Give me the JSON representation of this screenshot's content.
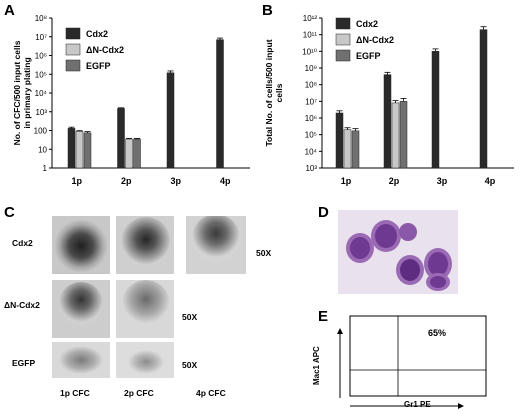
{
  "panels": {
    "A": {
      "letter": "A",
      "ylabel_lines": [
        "No. of CFC/500  input cells",
        "in primary plating"
      ],
      "y_ticks": [
        "1",
        "10",
        "100",
        "10³",
        "10⁴",
        "10⁵",
        "10⁶",
        "10⁷",
        "10⁸"
      ],
      "legend": [
        "Cdx2",
        "ΔN-Cdx2",
        "EGFP"
      ],
      "chart_data": {
        "type": "bar",
        "scale": "log",
        "ylim": [
          1,
          100000000
        ],
        "categories": [
          "1p",
          "2p",
          "3p",
          "4p"
        ],
        "series": [
          {
            "name": "Cdx2",
            "color": "#2a2a2a",
            "values": [
              130,
              1500,
              120000,
              7000000
            ],
            "errors": [
              20,
              120,
              30000,
              1500000
            ]
          },
          {
            "name": "ΔN-Cdx2",
            "color": "#c8c8c8",
            "values": [
              90,
              35,
              null,
              null
            ],
            "errors": [
              8,
              3,
              null,
              null
            ]
          },
          {
            "name": "EGFP",
            "color": "#707070",
            "values": [
              75,
              35,
              null,
              null
            ],
            "errors": [
              12,
              3,
              null,
              null
            ]
          }
        ]
      }
    },
    "B": {
      "letter": "B",
      "ylabel_lines": [
        "Total No. of cells/500  input",
        "cells"
      ],
      "y_ticks": [
        "10³",
        "10⁴",
        "10⁵",
        "10⁶",
        "10⁷",
        "10⁸",
        "10⁹",
        "10¹⁰",
        "10¹¹",
        "10¹²"
      ],
      "legend": [
        "Cdx2",
        "ΔN-Cdx2",
        "EGFP"
      ],
      "chart_data": {
        "type": "bar",
        "scale": "log",
        "ylim": [
          1000,
          1000000000000
        ],
        "categories": [
          "1p",
          "2p",
          "3p",
          "4p"
        ],
        "series": [
          {
            "name": "Cdx2",
            "color": "#2a2a2a",
            "values": [
              2000000,
              400000000,
              10000000000,
              200000000000
            ],
            "errors": [
              700000,
              150000000,
              4000000000,
              100000000000
            ]
          },
          {
            "name": "ΔN-Cdx2",
            "color": "#c8c8c8",
            "values": [
              200000,
              8000000,
              null,
              null
            ],
            "errors": [
              60000,
              3000000,
              null,
              null
            ]
          },
          {
            "name": "EGFP",
            "color": "#707070",
            "values": [
              170000,
              10000000,
              null,
              null
            ],
            "errors": [
              60000,
              5000000,
              null,
              null
            ]
          }
        ]
      }
    },
    "C": {
      "letter": "C",
      "row_labels": [
        "Cdx2",
        "ΔN-Cdx2",
        "EGFP"
      ],
      "col_labels": [
        "1p CFC",
        "2p CFC",
        "4p CFC"
      ],
      "magnification": "50X"
    },
    "D": {
      "letter": "D"
    },
    "E": {
      "letter": "E",
      "percent": "65%",
      "xlabel": "Gr1 PE",
      "ylabel": "Mac1 APC"
    }
  },
  "colors": {
    "cdx2": "#2a2a2a",
    "dn_cdx2": "#c8c8c8",
    "egfp": "#707070",
    "stain_purple": "#7a3f9a",
    "stain_background": "#e9e2ee"
  }
}
